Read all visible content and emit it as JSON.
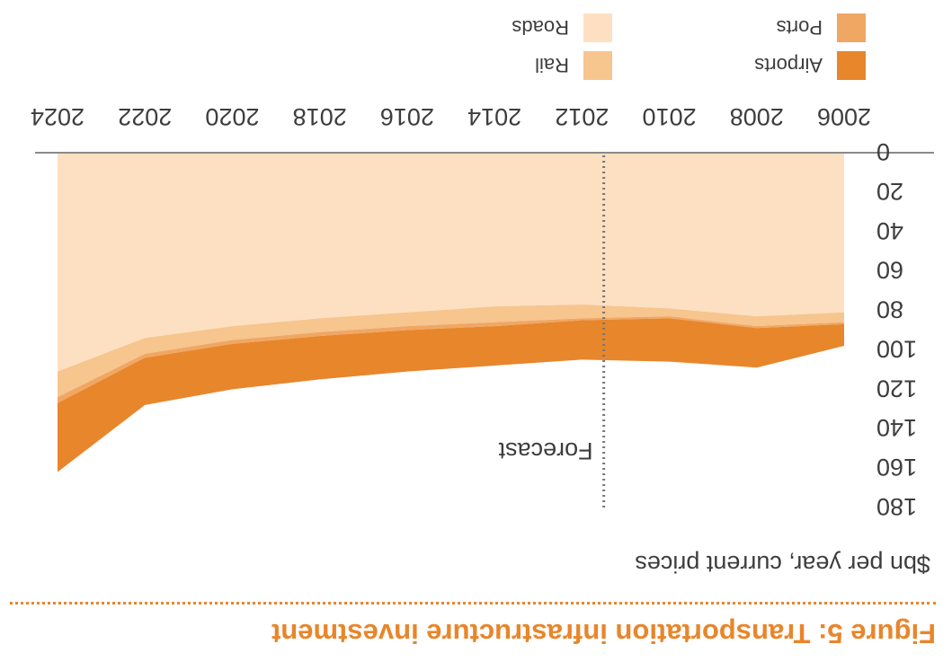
{
  "figure": {
    "title": "Figure 5: Transportation infrastructure investment",
    "ylabel": "$bn per year, current prices"
  },
  "chart_data": {
    "type": "area",
    "stacked": true,
    "x": [
      2006,
      2008,
      2010,
      2012,
      2014,
      2016,
      2018,
      2020,
      2022,
      2024
    ],
    "x_ticks": [
      "2006",
      "2008",
      "2010",
      "2012",
      "2014",
      "2016",
      "2018",
      "2020",
      "2022",
      "2024"
    ],
    "y_ticks": [
      "0",
      "20",
      "40",
      "60",
      "80",
      "100",
      "120",
      "140",
      "160",
      "180"
    ],
    "ylim": [
      0,
      180
    ],
    "series": [
      {
        "name": "Roads",
        "color": "#fde0c2",
        "values": [
          81,
          83,
          79,
          77,
          78,
          81,
          84,
          88,
          94,
          111
        ]
      },
      {
        "name": "Rail",
        "color": "#f7c58e",
        "values": [
          5,
          5,
          4,
          7,
          8,
          7,
          7,
          7,
          8,
          13
        ]
      },
      {
        "name": "Ports",
        "color": "#f0a764",
        "values": [
          1,
          1,
          1,
          1,
          2,
          2,
          2,
          2,
          2,
          3
        ]
      },
      {
        "name": "Airports",
        "color": "#e8862b",
        "values": [
          11,
          20,
          22,
          20,
          20,
          21,
          22,
          23,
          24,
          35
        ]
      }
    ],
    "annotations": [
      {
        "text": "Forecast",
        "x": 2011.5
      }
    ],
    "legend_position": "bottom-right",
    "grid": false
  }
}
